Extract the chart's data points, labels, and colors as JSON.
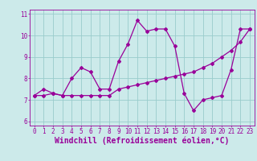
{
  "xlabel": "Windchill (Refroidissement éolien,°C)",
  "xlim": [
    -0.5,
    23.5
  ],
  "ylim": [
    5.8,
    11.2
  ],
  "xticks": [
    0,
    1,
    2,
    3,
    4,
    5,
    6,
    7,
    8,
    9,
    10,
    11,
    12,
    13,
    14,
    15,
    16,
    17,
    18,
    19,
    20,
    21,
    22,
    23
  ],
  "yticks": [
    6,
    7,
    8,
    9,
    10,
    11
  ],
  "bg_color": "#cceaea",
  "line_color": "#990099",
  "grid_color": "#99cccc",
  "line1_x": [
    0,
    1,
    2,
    3,
    4,
    5,
    6,
    7,
    8,
    9,
    10,
    11,
    12,
    13,
    14,
    15,
    16,
    17,
    18,
    19,
    20,
    21,
    22,
    23
  ],
  "line1_y": [
    7.2,
    7.5,
    7.3,
    7.2,
    8.0,
    8.5,
    8.3,
    7.5,
    7.5,
    8.8,
    9.6,
    10.7,
    10.2,
    10.3,
    10.3,
    9.5,
    7.3,
    6.5,
    7.0,
    7.1,
    7.2,
    8.4,
    10.3,
    10.3
  ],
  "line2_x": [
    0,
    1,
    2,
    3,
    4,
    5,
    6,
    7,
    8,
    9,
    10,
    11,
    12,
    13,
    14,
    15,
    16,
    17,
    18,
    19,
    20,
    21,
    22,
    23
  ],
  "line2_y": [
    7.2,
    7.2,
    7.3,
    7.2,
    7.2,
    7.2,
    7.2,
    7.2,
    7.2,
    7.5,
    7.6,
    7.7,
    7.8,
    7.9,
    8.0,
    8.1,
    8.2,
    8.3,
    8.5,
    8.7,
    9.0,
    9.3,
    9.7,
    10.3
  ],
  "tick_fontsize": 5.5,
  "xlabel_fontsize": 7.0,
  "marker_size": 2.0,
  "line_width": 0.9
}
